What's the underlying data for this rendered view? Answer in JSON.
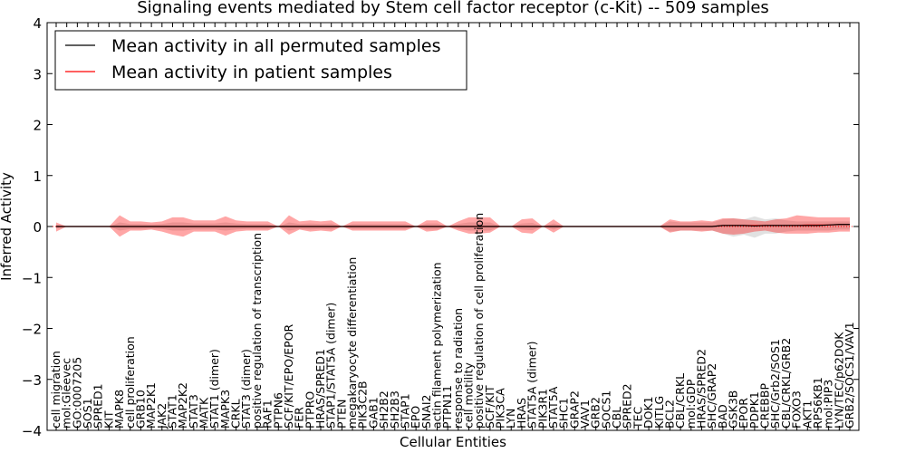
{
  "chart_data": {
    "type": "line",
    "title": "Signaling events mediated by Stem cell factor receptor (c-Kit) -- 509 samples",
    "xlabel": "Cellular Entities",
    "ylabel": "Inferred Activity",
    "ylim": [
      -4,
      4
    ],
    "yticks": [
      -4,
      -3,
      -2,
      -1,
      0,
      1,
      2,
      3,
      4
    ],
    "ytick_labels": [
      "−4",
      "−3",
      "−2",
      "−1",
      "0",
      "1",
      "2",
      "3",
      "4"
    ],
    "legend": {
      "position": "top-left",
      "entries": [
        {
          "label": "Mean activity in all permuted samples",
          "color": "#000000"
        },
        {
          "label": "Mean activity in patient samples",
          "color": "#ff0000"
        }
      ]
    },
    "categories": [
      "cell migration",
      "mol:Gleevec",
      "GO:0007205",
      "SOS1",
      "SPRED1",
      "KIT",
      "MAPK8",
      "cell proliferation",
      "GRB10",
      "MAP2K1",
      "JAK2",
      "STAT1",
      "MAP2K2",
      "STAT3",
      "MATK",
      "STAT1 (dimer)",
      "MAPK3",
      "CRKL",
      "STAT3 (dimer)",
      "positive regulation of transcription",
      "RAF1",
      "PTPN6",
      "SCF/KIT/EPO/EPOR",
      "FER",
      "PTPRO",
      "HRAS/SPRED1",
      "STAP1/STAT5A (dimer)",
      "PTEN",
      "megakaryocyte differentiation",
      "PIK3C2B",
      "GAB1",
      "SH2B2",
      "SH2B3",
      "STAP1",
      "EPO",
      "SNAI2",
      "actin filament polymerization",
      "PTPN11",
      "response to radiation",
      "cell motility",
      "positive regulation of cell proliferation",
      "SCF/KIT",
      "PIK3CA",
      "LYN",
      "HRAS",
      "STAT5A (dimer)",
      "PIK3R1",
      "STAT5A",
      "SHC1",
      "GRAP2",
      "VAV1",
      "GRB2",
      "SOCS1",
      "CBL",
      "SPRED2",
      "TEC",
      "DOK1",
      "KITLG",
      "BCL2",
      "CBL/CRKL",
      "mol:GDP",
      "HRAS/SPRED2",
      "SHC/GRAP2",
      "BAD",
      "GSK3B",
      "EPOR",
      "PDPK1",
      "CREBBP",
      "SHC/Grb2/SOS1",
      "CBL/CRKL/GRB2",
      "FOXO3",
      "AKT1",
      "RPS6KB1",
      "mol:PIP3",
      "LYN/TEC/p62DOK",
      "GRB2/SOCS1/VAV1"
    ],
    "series": [
      {
        "name": "Mean activity in patient samples",
        "color": "#ff0000",
        "values": [
          0.0,
          0.0,
          0.0,
          0.0,
          0.0,
          0.0,
          0.0,
          0.0,
          0.0,
          0.0,
          0.0,
          0.0,
          0.0,
          0.0,
          0.0,
          0.0,
          0.0,
          0.0,
          0.0,
          0.0,
          0.0,
          0.0,
          0.0,
          0.0,
          0.0,
          0.0,
          0.0,
          0.0,
          0.0,
          0.0,
          0.0,
          0.0,
          0.0,
          0.0,
          0.0,
          0.0,
          0.0,
          0.0,
          0.0,
          0.0,
          0.0,
          0.0,
          0.0,
          0.0,
          0.0,
          0.0,
          0.0,
          0.0,
          0.0,
          0.0,
          0.0,
          0.0,
          0.0,
          0.0,
          0.0,
          0.0,
          0.0,
          0.0,
          0.0,
          0.0,
          0.0,
          0.0,
          0.0,
          0.02,
          0.02,
          0.02,
          0.02,
          0.02,
          0.02,
          0.02,
          0.02,
          0.03,
          0.03,
          0.03,
          0.04,
          0.04
        ]
      },
      {
        "name": "Mean activity in all permuted samples",
        "color": "#000000",
        "values": [
          0.0,
          0.0,
          0.0,
          0.0,
          0.0,
          0.0,
          0.0,
          0.0,
          0.0,
          0.0,
          0.0,
          0.0,
          0.0,
          0.0,
          0.0,
          0.0,
          0.0,
          0.0,
          0.0,
          0.0,
          0.0,
          0.0,
          0.0,
          0.0,
          0.0,
          0.0,
          0.0,
          0.0,
          0.0,
          0.0,
          0.0,
          0.0,
          0.0,
          0.0,
          0.0,
          0.0,
          0.0,
          0.0,
          0.0,
          0.0,
          0.0,
          0.0,
          0.0,
          0.0,
          0.0,
          0.0,
          0.0,
          0.0,
          0.0,
          0.0,
          0.0,
          0.0,
          0.0,
          0.0,
          0.0,
          0.0,
          0.0,
          0.0,
          0.0,
          0.0,
          0.0,
          0.0,
          0.0,
          0.02,
          0.02,
          0.02,
          0.01,
          0.02,
          0.02,
          0.02,
          0.02,
          0.02,
          0.02,
          0.03,
          0.04,
          0.04
        ]
      }
    ],
    "patient_band": {
      "upper": [
        0.08,
        0.0,
        0.0,
        0.0,
        0.0,
        0.0,
        0.22,
        0.1,
        0.1,
        0.08,
        0.1,
        0.18,
        0.18,
        0.12,
        0.12,
        0.12,
        0.2,
        0.12,
        0.1,
        0.1,
        0.1,
        0.0,
        0.22,
        0.1,
        0.12,
        0.1,
        0.12,
        0.0,
        0.1,
        0.1,
        0.1,
        0.1,
        0.1,
        0.1,
        0.0,
        0.12,
        0.12,
        0.0,
        0.1,
        0.18,
        0.18,
        0.18,
        0.0,
        0.0,
        0.14,
        0.16,
        0.0,
        0.14,
        0.0,
        0.0,
        0.0,
        0.0,
        0.0,
        0.0,
        0.0,
        0.0,
        0.0,
        0.0,
        0.14,
        0.1,
        0.1,
        0.12,
        0.1,
        0.16,
        0.16,
        0.14,
        0.12,
        0.1,
        0.14,
        0.16,
        0.22,
        0.2,
        0.18,
        0.18,
        0.18,
        0.18
      ],
      "lower": [
        -0.1,
        0.0,
        0.0,
        0.0,
        0.0,
        0.0,
        -0.2,
        -0.08,
        -0.08,
        -0.06,
        -0.1,
        -0.16,
        -0.2,
        -0.1,
        -0.1,
        -0.1,
        -0.18,
        -0.1,
        -0.08,
        -0.08,
        -0.08,
        0.0,
        -0.16,
        -0.06,
        -0.1,
        -0.08,
        -0.1,
        0.0,
        -0.08,
        -0.08,
        -0.08,
        -0.08,
        -0.08,
        -0.08,
        0.0,
        -0.1,
        -0.08,
        0.0,
        -0.08,
        -0.14,
        -0.14,
        -0.12,
        0.0,
        0.0,
        -0.12,
        -0.14,
        0.0,
        -0.12,
        0.0,
        0.0,
        0.0,
        0.0,
        0.0,
        0.0,
        0.0,
        0.0,
        0.0,
        0.0,
        -0.12,
        -0.08,
        -0.08,
        -0.1,
        -0.08,
        -0.14,
        -0.16,
        -0.14,
        -0.1,
        -0.08,
        -0.12,
        -0.14,
        -0.14,
        -0.14,
        -0.12,
        -0.12,
        -0.1,
        -0.1
      ]
    },
    "permuted_band": {
      "upper": [
        0.04,
        0.0,
        0.0,
        0.0,
        0.0,
        0.0,
        0.08,
        0.05,
        0.05,
        0.04,
        0.05,
        0.08,
        0.08,
        0.06,
        0.06,
        0.06,
        0.08,
        0.06,
        0.05,
        0.05,
        0.05,
        0.0,
        0.08,
        0.05,
        0.06,
        0.05,
        0.06,
        0.0,
        0.05,
        0.05,
        0.05,
        0.05,
        0.05,
        0.05,
        0.0,
        0.06,
        0.06,
        0.0,
        0.05,
        0.08,
        0.08,
        0.08,
        0.0,
        0.0,
        0.06,
        0.07,
        0.0,
        0.06,
        0.0,
        0.0,
        0.0,
        0.0,
        0.0,
        0.0,
        0.0,
        0.0,
        0.0,
        0.0,
        0.1,
        0.08,
        0.08,
        0.08,
        0.08,
        0.14,
        0.16,
        0.14,
        0.2,
        0.14,
        0.16,
        0.12,
        0.1,
        0.1,
        0.1,
        0.1,
        0.1,
        0.1
      ],
      "lower": [
        -0.04,
        0.0,
        0.0,
        0.0,
        0.0,
        0.0,
        -0.08,
        -0.05,
        -0.05,
        -0.04,
        -0.05,
        -0.08,
        -0.08,
        -0.06,
        -0.06,
        -0.06,
        -0.08,
        -0.06,
        -0.05,
        -0.05,
        -0.05,
        0.0,
        -0.08,
        -0.05,
        -0.06,
        -0.05,
        -0.06,
        0.0,
        -0.05,
        -0.05,
        -0.05,
        -0.05,
        -0.05,
        -0.05,
        0.0,
        -0.06,
        -0.06,
        0.0,
        -0.05,
        -0.08,
        -0.08,
        -0.08,
        0.0,
        0.0,
        -0.06,
        -0.07,
        0.0,
        -0.06,
        0.0,
        0.0,
        0.0,
        0.0,
        0.0,
        0.0,
        0.0,
        0.0,
        0.0,
        0.0,
        -0.1,
        -0.08,
        -0.08,
        -0.08,
        -0.08,
        -0.14,
        -0.2,
        -0.16,
        -0.22,
        -0.14,
        -0.14,
        -0.1,
        -0.08,
        -0.08,
        -0.08,
        -0.08,
        -0.06,
        -0.06
      ]
    },
    "reference_line": {
      "y": 0,
      "style": "dotted",
      "color": "#ff0000"
    }
  }
}
